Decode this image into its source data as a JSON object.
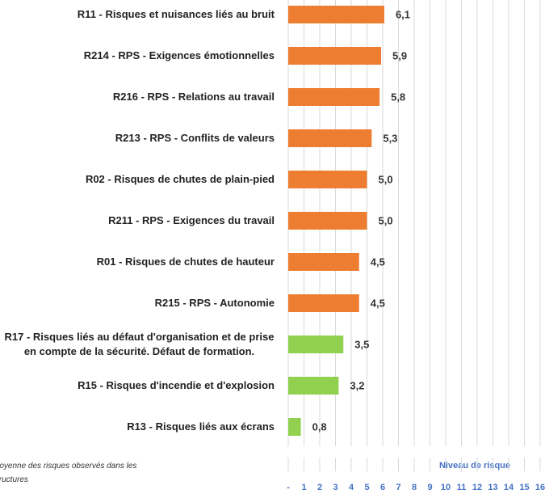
{
  "chart_data": {
    "type": "bar",
    "orientation": "horizontal",
    "categories": [
      "R11 - Risques et nuisances liés au bruit",
      "R214 - RPS - Exigences émotionnelles",
      "R216 - RPS - Relations au travail",
      "R213 - RPS - Conflits de valeurs",
      "R02 - Risques de chutes de plain-pied",
      "R211 - RPS - Exigences du travail",
      "R01 - Risques de chutes de hauteur",
      "R215 - RPS - Autonomie",
      "R17 - Risques liés au défaut d'organisation et de prise en compte de la sécurité. Défaut de formation.",
      "R15 - Risques d'incendie et d'explosion",
      "R13 - Risques liés aux écrans"
    ],
    "values": [
      6.1,
      5.9,
      5.8,
      5.3,
      5.0,
      5.0,
      4.5,
      4.5,
      3.5,
      3.2,
      0.8
    ],
    "value_labels": [
      "6,1",
      "5,9",
      "5,8",
      "5,3",
      "5,0",
      "5,0",
      "4,5",
      "4,5",
      "3,5",
      "3,2",
      "0,8"
    ],
    "colors": [
      "#ED7D31",
      "#ED7D31",
      "#ED7D31",
      "#ED7D31",
      "#ED7D31",
      "#ED7D31",
      "#ED7D31",
      "#ED7D31",
      "#92D050",
      "#92D050",
      "#92D050"
    ],
    "x_label": "Niveau de risque",
    "note": "Moyenne des risques observés dans les structures",
    "xlim": [
      0,
      16
    ],
    "xticks": [
      {
        "value": 0,
        "label": "-"
      },
      1,
      2,
      3,
      4,
      5,
      6,
      7,
      8,
      9,
      10,
      11,
      12,
      13,
      14,
      15,
      16
    ],
    "grid": true
  }
}
